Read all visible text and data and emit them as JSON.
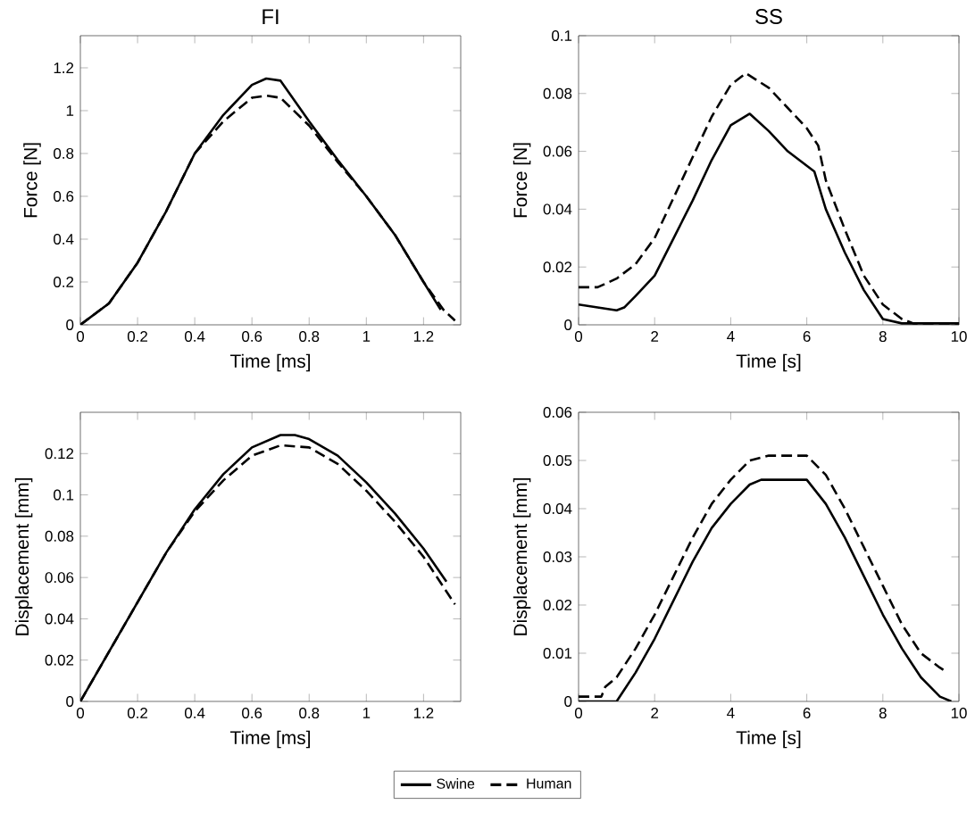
{
  "chart_data": [
    {
      "type": "line",
      "title": "FI",
      "xlabel": "Time [ms]",
      "ylabel": "Force [N]",
      "xlim": [
        0,
        1.33
      ],
      "ylim": [
        0,
        1.35
      ],
      "xticks": [
        0,
        0.2,
        0.4,
        0.6,
        0.8,
        1,
        1.2
      ],
      "yticks": [
        0,
        0.2,
        0.4,
        0.6,
        0.8,
        1,
        1.2
      ],
      "legend": false,
      "series": [
        {
          "color": "#000000",
          "line_style": "solid",
          "x": [
            0,
            0.1,
            0.2,
            0.3,
            0.4,
            0.5,
            0.6,
            0.65,
            0.7,
            0.8,
            0.9,
            1.0,
            1.1,
            1.2,
            1.26
          ],
          "values": [
            0,
            0.1,
            0.29,
            0.53,
            0.8,
            0.98,
            1.12,
            1.15,
            1.14,
            0.95,
            0.77,
            0.6,
            0.42,
            0.2,
            0.07
          ]
        },
        {
          "color": "#000000",
          "line_style": "dashed",
          "x": [
            0,
            0.1,
            0.2,
            0.3,
            0.4,
            0.5,
            0.6,
            0.65,
            0.7,
            0.8,
            0.9,
            1.0,
            1.1,
            1.2,
            1.27,
            1.31
          ],
          "values": [
            0,
            0.1,
            0.29,
            0.53,
            0.8,
            0.95,
            1.06,
            1.07,
            1.06,
            0.93,
            0.76,
            0.6,
            0.42,
            0.2,
            0.07,
            0.02
          ]
        }
      ]
    },
    {
      "type": "line",
      "title": "SS",
      "xlabel": "Time [s]",
      "ylabel": "Force [N]",
      "xlim": [
        0,
        10
      ],
      "ylim": [
        0,
        0.1
      ],
      "xticks": [
        0,
        2,
        4,
        6,
        8,
        10
      ],
      "yticks": [
        0,
        0.02,
        0.04,
        0.06,
        0.08,
        0.1
      ],
      "legend": false,
      "series": [
        {
          "color": "#000000",
          "line_style": "solid",
          "x": [
            0,
            0.5,
            1,
            1.2,
            1.5,
            2,
            2.5,
            3,
            3.5,
            4,
            4.5,
            5,
            5.5,
            6,
            6.2,
            6.5,
            7,
            7.5,
            8,
            8.5,
            10
          ],
          "values": [
            0.007,
            0.006,
            0.005,
            0.006,
            0.01,
            0.017,
            0.03,
            0.043,
            0.057,
            0.069,
            0.073,
            0.067,
            0.06,
            0.055,
            0.053,
            0.04,
            0.025,
            0.012,
            0.002,
            0.0005,
            0.0005
          ]
        },
        {
          "color": "#000000",
          "line_style": "dashed",
          "x": [
            0,
            0.5,
            1,
            1.5,
            2,
            2.5,
            3,
            3.5,
            4,
            4.4,
            5,
            5.5,
            6,
            6.3,
            6.5,
            7,
            7.5,
            8,
            8.5,
            8.8,
            10
          ],
          "values": [
            0.013,
            0.013,
            0.016,
            0.021,
            0.03,
            0.044,
            0.058,
            0.072,
            0.083,
            0.087,
            0.082,
            0.075,
            0.068,
            0.062,
            0.05,
            0.033,
            0.017,
            0.007,
            0.002,
            0.0005,
            0.0005
          ]
        }
      ]
    },
    {
      "type": "line",
      "xlabel": "Time [ms]",
      "ylabel": "Displacement [mm]",
      "xlim": [
        0,
        1.33
      ],
      "ylim": [
        0,
        0.14
      ],
      "xticks": [
        0,
        0.2,
        0.4,
        0.6,
        0.8,
        1,
        1.2
      ],
      "yticks": [
        0,
        0.02,
        0.04,
        0.06,
        0.08,
        0.1,
        0.12
      ],
      "legend": "bottom",
      "series": [
        {
          "name": "Swine",
          "color": "#000000",
          "line_style": "solid",
          "x": [
            0,
            0.1,
            0.2,
            0.3,
            0.4,
            0.5,
            0.6,
            0.7,
            0.75,
            0.8,
            0.9,
            1.0,
            1.1,
            1.2,
            1.28
          ],
          "values": [
            0,
            0.024,
            0.048,
            0.072,
            0.093,
            0.11,
            0.123,
            0.129,
            0.129,
            0.127,
            0.119,
            0.106,
            0.091,
            0.074,
            0.058
          ]
        },
        {
          "name": "Human",
          "color": "#000000",
          "line_style": "dashed",
          "x": [
            0,
            0.1,
            0.2,
            0.3,
            0.4,
            0.5,
            0.6,
            0.7,
            0.8,
            0.9,
            1.0,
            1.1,
            1.2,
            1.31
          ],
          "values": [
            0,
            0.024,
            0.048,
            0.072,
            0.092,
            0.107,
            0.119,
            0.124,
            0.123,
            0.115,
            0.102,
            0.087,
            0.07,
            0.047
          ]
        }
      ]
    },
    {
      "type": "line",
      "xlabel": "Time [s]",
      "ylabel": "Displacement [mm]",
      "xlim": [
        0,
        10
      ],
      "ylim": [
        0,
        0.06
      ],
      "xticks": [
        0,
        2,
        4,
        6,
        8,
        10
      ],
      "yticks": [
        0,
        0.01,
        0.02,
        0.03,
        0.04,
        0.05,
        0.06
      ],
      "legend": false,
      "series": [
        {
          "color": "#000000",
          "line_style": "solid",
          "x": [
            0,
            1,
            1.5,
            2,
            2.5,
            3,
            3.5,
            4,
            4.5,
            4.8,
            6,
            6.5,
            7,
            7.5,
            8,
            8.5,
            9,
            9.5,
            9.8
          ],
          "values": [
            0,
            0,
            0.006,
            0.013,
            0.021,
            0.029,
            0.036,
            0.041,
            0.045,
            0.046,
            0.046,
            0.041,
            0.034,
            0.026,
            0.018,
            0.011,
            0.005,
            0.001,
            0
          ]
        },
        {
          "color": "#000000",
          "line_style": "dashed",
          "x": [
            0,
            0.6,
            0.7,
            1,
            1.5,
            2,
            2.5,
            3,
            3.5,
            4,
            4.5,
            5,
            6,
            6.5,
            7,
            7.5,
            8,
            8.5,
            9,
            9.5,
            9.7
          ],
          "values": [
            0.001,
            0.001,
            0.003,
            0.005,
            0.011,
            0.018,
            0.026,
            0.034,
            0.041,
            0.046,
            0.05,
            0.051,
            0.051,
            0.047,
            0.04,
            0.032,
            0.024,
            0.016,
            0.01,
            0.007,
            0.006
          ]
        }
      ]
    }
  ]
}
